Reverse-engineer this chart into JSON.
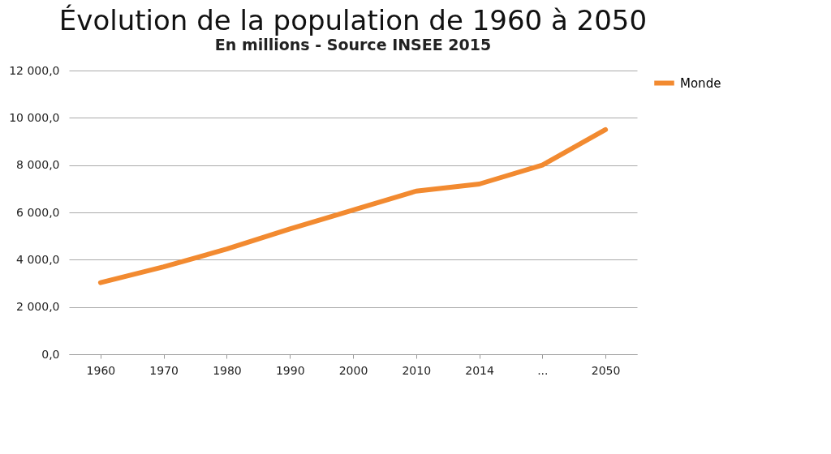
{
  "chart_data": {
    "type": "line",
    "title": "Évolution de la population de 1960 à 2050",
    "subtitle": "En millions - Source INSEE 2015",
    "categories": [
      "1960",
      "1970",
      "1980",
      "1990",
      "2000",
      "2010",
      "2014",
      "...",
      "2050"
    ],
    "series": [
      {
        "name": "Monde",
        "color": "#f28a30",
        "values": [
          3030,
          3700,
          4450,
          5300,
          6100,
          6900,
          7200,
          8000,
          9500
        ]
      }
    ],
    "ylim": [
      0,
      12000
    ],
    "yticks": [
      {
        "value": 0,
        "label": "0,0"
      },
      {
        "value": 2000,
        "label": "2 000,0"
      },
      {
        "value": 4000,
        "label": "4 000,0"
      },
      {
        "value": 6000,
        "label": "6 000,0"
      },
      {
        "value": 8000,
        "label": "8 000,0"
      },
      {
        "value": 10000,
        "label": "10 000,0"
      },
      {
        "value": 12000,
        "label": "12 000,0"
      }
    ],
    "grid": "y",
    "legend": "right",
    "marker": "none",
    "line_style": "solid"
  }
}
